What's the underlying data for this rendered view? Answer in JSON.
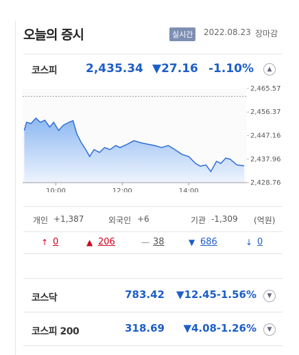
{
  "header": {
    "title": "오늘의 증시",
    "badge": "실시간",
    "date": "2022.08.23",
    "status": "장마감"
  },
  "kospi": {
    "name": "코스피",
    "value": "2,435.34",
    "change": "▼27.16",
    "rate": "-1.10%"
  },
  "chart_data": {
    "type": "line",
    "x": [
      543,
      547,
      555,
      564,
      572,
      580,
      589,
      596,
      605,
      614,
      624,
      631,
      638,
      646,
      654,
      661,
      669,
      679,
      688,
      698,
      708,
      716,
      729,
      741,
      753,
      766,
      778,
      791,
      803,
      815,
      828,
      840,
      852,
      861,
      871,
      880,
      890,
      898,
      907,
      915,
      927,
      940
    ],
    "series": [
      {
        "color": "#2f6fd6",
        "values": [
          2449.2,
          2452.4,
          2451.9,
          2454.0,
          2452.4,
          2453.2,
          2450.5,
          2452.4,
          2449.2,
          2451.3,
          2452.4,
          2453.0,
          2447.8,
          2444.4,
          2441.7,
          2439.0,
          2441.7,
          2440.6,
          2442.5,
          2441.7,
          2443.3,
          2442.5,
          2443.8,
          2445.2,
          2444.4,
          2443.8,
          2443.3,
          2442.5,
          2443.3,
          2441.7,
          2439.8,
          2439.0,
          2436.3,
          2435.2,
          2435.7,
          2433.1,
          2437.1,
          2436.3,
          2438.4,
          2437.9,
          2435.7,
          2435.34
        ]
      }
    ],
    "xlim": [
      540,
      945
    ],
    "ylim": [
      2428.76,
      2465.57
    ],
    "xticks": [
      {
        "value": 600,
        "label": "10:00"
      },
      {
        "value": 720,
        "label": "12:00"
      },
      {
        "value": 840,
        "label": "14:00"
      }
    ],
    "yticks": [
      {
        "value": 2428.76,
        "label": "2,428.76"
      },
      {
        "value": 2437.96,
        "label": "2,437.96"
      },
      {
        "value": 2447.16,
        "label": "2,447.16"
      },
      {
        "value": 2456.37,
        "label": "2,456.37"
      },
      {
        "value": 2465.57,
        "label": "2,465.57"
      }
    ],
    "reference_line": 2462.5
  },
  "investors": {
    "items": [
      {
        "label": "개인",
        "value": "+1,387"
      },
      {
        "label": "외국인",
        "value": "+6"
      },
      {
        "label": "기관",
        "value": "-1,309"
      }
    ],
    "unit": "(억원)"
  },
  "breadth": [
    "0",
    "206",
    "38",
    "686",
    "0"
  ],
  "indices": [
    {
      "name": "코스닥",
      "value": "783.42",
      "change": "▼12.45",
      "rate": "-1.56%"
    },
    {
      "name": "코스피 200",
      "value": "318.69",
      "change": "▼4.08",
      "rate": "-1.26%"
    }
  ]
}
